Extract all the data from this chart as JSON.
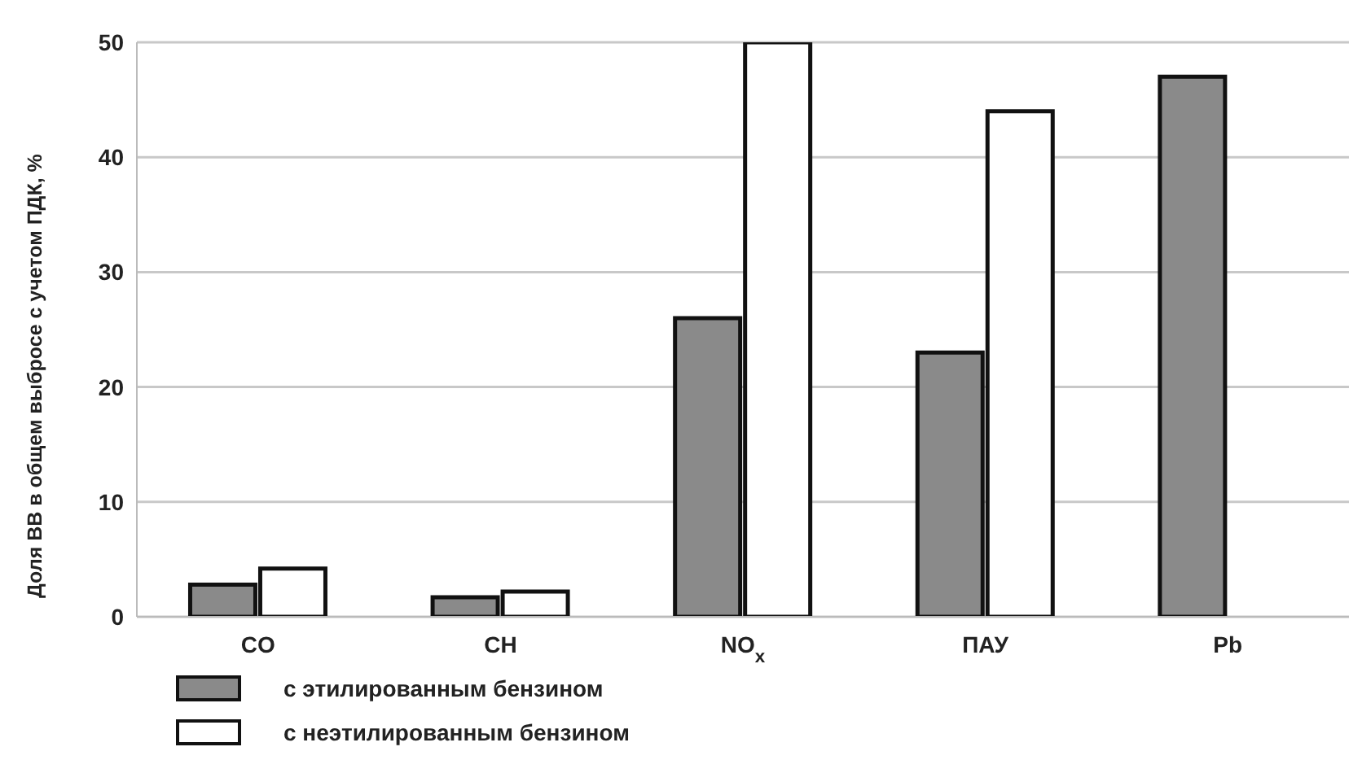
{
  "chart_data": {
    "type": "bar",
    "ylabel": "Доля ВВ в общем выбросе с учетом ПДК, %",
    "categories": [
      "CO",
      "CH",
      "NO$_{x}$",
      "ПАУ",
      "Pb"
    ],
    "series": [
      {
        "name": "с этилированным бензином",
        "color": "#8a8a8a",
        "values": [
          2.8,
          1.7,
          26,
          23,
          47
        ]
      },
      {
        "name": "с неэтилированным бензином",
        "color": "#ffffff",
        "values": [
          4.2,
          2.2,
          50,
          44,
          null
        ]
      }
    ],
    "ylim": [
      0,
      50
    ],
    "yticks": [
      0,
      10,
      20,
      30,
      40,
      50
    ],
    "grid": "y",
    "legend": "bottom left"
  }
}
